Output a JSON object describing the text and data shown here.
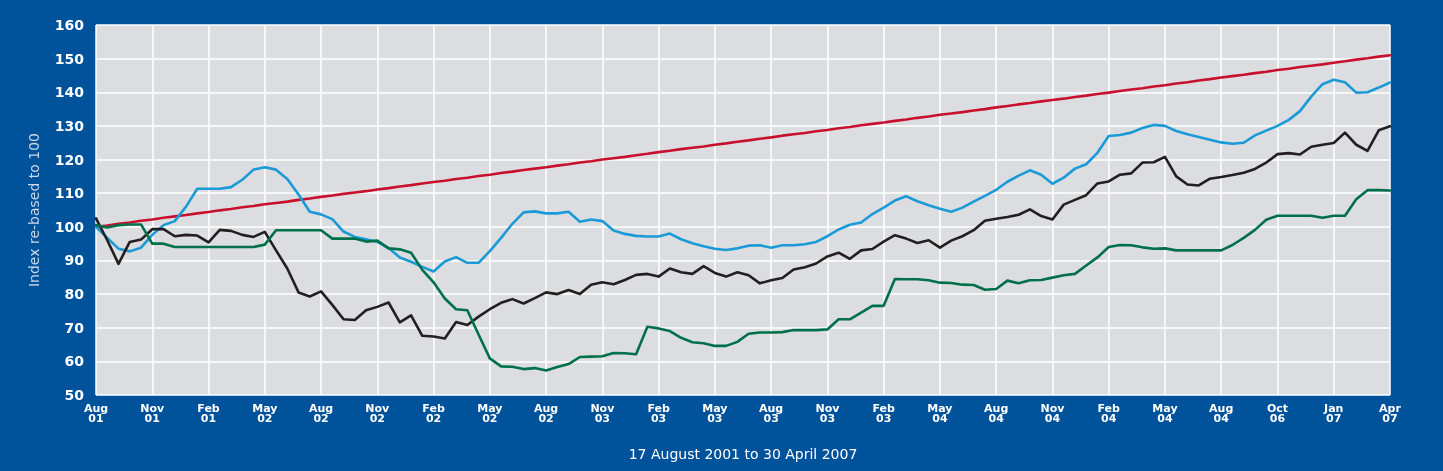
{
  "chart_data": {
    "type": "line",
    "xlabel": "17 August 2001 to 30 April 2007",
    "ylabel": "Index re-based to 100",
    "categories": [
      "Aug 01",
      null,
      null,
      null,
      null,
      "Nov 01",
      null,
      null,
      null,
      null,
      "Feb 01",
      null,
      null,
      null,
      null,
      "May 02",
      null,
      null,
      null,
      null,
      "Aug 02",
      null,
      null,
      null,
      null,
      "Nov 02",
      null,
      null,
      null,
      null,
      "Feb 02",
      null,
      null,
      null,
      null,
      "May 02",
      null,
      null,
      null,
      null,
      "Aug 02",
      null,
      null,
      null,
      null,
      "Nov 03",
      null,
      null,
      null,
      null,
      "Feb 03",
      null,
      null,
      null,
      null,
      "May 03",
      null,
      null,
      null,
      null,
      "Aug 03",
      null,
      null,
      null,
      null,
      "Nov 03",
      null,
      null,
      null,
      null,
      "Feb 03",
      null,
      null,
      null,
      null,
      "May 04",
      null,
      null,
      null,
      null,
      "Aug 04",
      null,
      null,
      null,
      null,
      "Nov 04",
      null,
      null,
      null,
      null,
      "Feb 04",
      null,
      null,
      null,
      null,
      "May 04",
      null,
      null,
      null,
      null,
      "Aug 04",
      null,
      null,
      null,
      null,
      "Oct 06",
      null,
      null,
      null,
      null,
      "Jan 07",
      null,
      null,
      null,
      null,
      "Apr 07"
    ],
    "ylim": [
      50,
      160
    ],
    "yticks": [
      50,
      60,
      70,
      80,
      90,
      100,
      110,
      120,
      130,
      140,
      150,
      160
    ],
    "grid": true,
    "marker": "none",
    "line_style": "solid",
    "series": [
      {
        "color": "#c8102e",
        "values": [
          100,
          100.4,
          100.9,
          101.3,
          101.8,
          102.2,
          102.7,
          103.1,
          103.5,
          104,
          104.4,
          104.9,
          105.3,
          105.8,
          106.2,
          106.7,
          107.1,
          107.5,
          108,
          108.4,
          108.9,
          109.3,
          109.8,
          110.2,
          110.6,
          111.1,
          111.5,
          112,
          112.4,
          112.9,
          113.3,
          113.7,
          114.2,
          114.6,
          115.1,
          115.5,
          116,
          116.4,
          116.9,
          117.3,
          117.7,
          118.2,
          118.6,
          119.1,
          119.5,
          120,
          120.4,
          120.8,
          121.3,
          121.7,
          122.2,
          122.6,
          123.1,
          123.5,
          123.9,
          124.4,
          124.8,
          125.3,
          125.7,
          126.2,
          126.6,
          127.1,
          127.5,
          127.9,
          128.4,
          128.8,
          129.3,
          129.7,
          130.2,
          130.6,
          131,
          131.5,
          131.9,
          132.4,
          132.8,
          133.3,
          133.7,
          134.1,
          134.6,
          135,
          135.5,
          135.9,
          136.4,
          136.8,
          137.3,
          137.7,
          138.1,
          138.6,
          139,
          139.5,
          139.9,
          140.4,
          140.8,
          141.2,
          141.7,
          142.1,
          142.6,
          143,
          143.5,
          143.9,
          144.4,
          144.8,
          145.2,
          145.7,
          146.1,
          146.6,
          147,
          147.5,
          147.9,
          148.3,
          148.8,
          149.2,
          149.7,
          150.1,
          150.6,
          151
        ]
      },
      {
        "color": "#1a9ad6",
        "values": [
          100,
          96.7,
          93.5,
          92.7,
          93.8,
          97.6,
          100.5,
          101.7,
          106,
          111.3,
          111.3,
          111.3,
          111.8,
          114,
          117,
          117.7,
          117,
          114.2,
          109.6,
          104.5,
          103.7,
          102.3,
          98.6,
          97,
          96.3,
          95.5,
          93.7,
          90.9,
          89.6,
          88.1,
          86.7,
          89.7,
          91,
          89.3,
          89.3,
          92.8,
          96.7,
          100.9,
          104.3,
          104.6,
          104,
          104,
          104.5,
          101.5,
          102.2,
          101.7,
          98.9,
          97.9,
          97.3,
          97.1,
          97.1,
          98,
          96.3,
          95.1,
          94.2,
          93.5,
          93.1,
          93.6,
          94.4,
          94.5,
          93.8,
          94.5,
          94.5,
          94.8,
          95.5,
          97.2,
          99.2,
          100.6,
          101.3,
          103.8,
          105.7,
          107.8,
          109.1,
          107.6,
          106.4,
          105.4,
          104.5,
          105.7,
          107.5,
          109.2,
          111,
          113.4,
          115.2,
          116.8,
          115.5,
          112.8,
          114.6,
          117.3,
          118.6,
          122,
          127,
          127.3,
          128,
          129.4,
          130.3,
          130,
          128.5,
          127.5,
          126.7,
          125.9,
          125.1,
          124.7,
          125,
          127.2,
          128.6,
          130,
          131.8,
          134.4,
          138.7,
          142.4,
          143.7,
          143,
          139.9,
          140,
          141.4,
          142.9
        ]
      },
      {
        "color": "#231f20",
        "values": [
          102.5,
          96,
          89,
          95.5,
          96.2,
          99.3,
          99.3,
          97.2,
          97.6,
          97.4,
          95.4,
          99.1,
          98.8,
          97.6,
          97,
          98.5,
          93,
          87.6,
          80.5,
          79.3,
          80.8,
          76.8,
          72.5,
          72.3,
          75.2,
          76.2,
          77.5,
          71.6,
          73.7,
          67.6,
          67.4,
          66.8,
          71.7,
          70.8,
          73.3,
          75.5,
          77.4,
          78.5,
          77.2,
          78.8,
          80.5,
          80,
          81.2,
          80,
          82.8,
          83.5,
          82.9,
          84.2,
          85.7,
          86,
          85.2,
          87.6,
          86.5,
          86,
          88.3,
          86.3,
          85.2,
          86.5,
          85.6,
          83.2,
          84.1,
          84.8,
          87.3,
          88,
          89.1,
          91.2,
          92.3,
          90.5,
          93,
          93.4,
          95.6,
          97.5,
          96.5,
          95.2,
          96,
          93.8,
          95.9,
          97.2,
          99,
          101.8,
          102.4,
          102.9,
          103.6,
          105.2,
          103.2,
          102.2,
          106.6,
          108,
          109.4,
          112.9,
          113.5,
          115.5,
          115.9,
          119.1,
          119.2,
          120.8,
          115,
          112.6,
          112.3,
          114.3,
          114.8,
          115.4,
          116.1,
          117.2,
          119.1,
          121.6,
          121.9,
          121.5,
          123.8,
          124.4,
          124.9,
          128,
          124.4,
          122.6,
          128.7,
          129.9
        ]
      },
      {
        "color": "#00704a",
        "values": [
          100.5,
          99.8,
          100.5,
          100.7,
          100.7,
          95,
          95,
          94,
          94,
          94,
          94,
          94,
          94,
          94,
          94,
          94.7,
          99,
          99,
          99,
          99,
          99,
          96.5,
          96.5,
          96.5,
          95.6,
          95.9,
          93.6,
          93.3,
          92.3,
          87.2,
          83.5,
          78.7,
          75.5,
          75.2,
          68,
          60.9,
          58.5,
          58.4,
          57.7,
          58,
          57.3,
          58.3,
          59.2,
          61.3,
          61.4,
          61.5,
          62.5,
          62.4,
          62.1,
          70.3,
          69.8,
          69,
          67,
          65.7,
          65.4,
          64.6,
          64.6,
          65.8,
          68.2,
          68.6,
          68.6,
          68.7,
          69.3,
          69.3,
          69.3,
          69.5,
          72.5,
          72.5,
          74.5,
          76.5,
          76.5,
          84.5,
          84.4,
          84.4,
          84.1,
          83.4,
          83.3,
          82.8,
          82.7,
          81.3,
          81.5,
          84,
          83.2,
          84.1,
          84.2,
          84.9,
          85.6,
          86,
          88.5,
          90.9,
          94,
          94.6,
          94.5,
          93.9,
          93.5,
          93.6,
          93,
          93,
          93,
          93,
          93,
          94.6,
          96.7,
          99.1,
          102.1,
          103.3,
          103.3,
          103.3,
          103.3,
          102.7,
          103.3,
          103.3,
          108.2,
          110.9,
          110.9,
          110.8
        ]
      }
    ]
  }
}
